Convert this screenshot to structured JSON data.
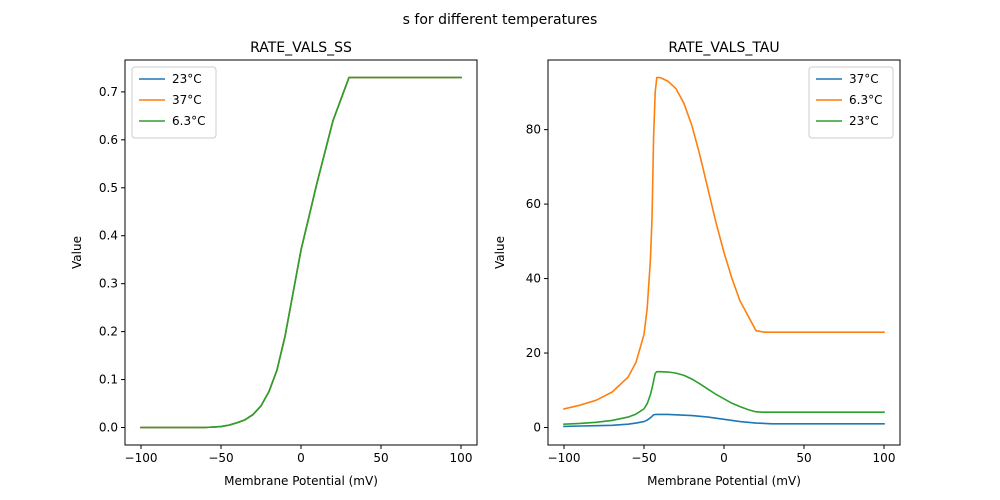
{
  "figure": {
    "suptitle": "s for different temperatures"
  },
  "colors": {
    "blue": "#1f77b4",
    "orange": "#ff7f0e",
    "green": "#2ca02c"
  },
  "chart_data": [
    {
      "type": "line",
      "title": "RATE_VALS_SS",
      "xlabel": "Membrane Potential (mV)",
      "ylabel": "Value",
      "xlim": [
        -100,
        100
      ],
      "ylim": [
        0,
        0.73
      ],
      "xticks": [
        -100,
        -50,
        0,
        50,
        100
      ],
      "xtick_labels": [
        "−100",
        "−50",
        "0",
        "50",
        "100"
      ],
      "yticks": [
        0,
        0.1,
        0.2,
        0.3,
        0.4,
        0.5,
        0.6,
        0.7
      ],
      "ytick_labels": [
        "0.0",
        "0.1",
        "0.2",
        "0.3",
        "0.4",
        "0.5",
        "0.6",
        "0.7"
      ],
      "legend_position": "top-left",
      "x": [
        -100,
        -60,
        -50,
        -45,
        -40,
        -35,
        -30,
        -25,
        -20,
        -15,
        -10,
        -5,
        0,
        5,
        10,
        15,
        20,
        25,
        30,
        40,
        60,
        80,
        100
      ],
      "series": [
        {
          "name": "23°C",
          "color": "#1f77b4",
          "values": [
            0.0,
            0.0,
            0.002,
            0.005,
            0.01,
            0.016,
            0.027,
            0.045,
            0.075,
            0.12,
            0.19,
            0.28,
            0.37,
            0.44,
            0.51,
            0.575,
            0.64,
            0.685,
            0.73,
            0.73,
            0.73,
            0.73,
            0.73
          ]
        },
        {
          "name": "37°C",
          "color": "#ff7f0e",
          "values": [
            0.0,
            0.0,
            0.002,
            0.005,
            0.01,
            0.016,
            0.027,
            0.045,
            0.075,
            0.12,
            0.19,
            0.28,
            0.37,
            0.44,
            0.51,
            0.575,
            0.64,
            0.685,
            0.73,
            0.73,
            0.73,
            0.73,
            0.73
          ]
        },
        {
          "name": "6.3°C",
          "color": "#2ca02c",
          "values": [
            0.0,
            0.0,
            0.002,
            0.005,
            0.01,
            0.016,
            0.027,
            0.045,
            0.075,
            0.12,
            0.19,
            0.28,
            0.37,
            0.44,
            0.51,
            0.575,
            0.64,
            0.685,
            0.73,
            0.73,
            0.73,
            0.73,
            0.73
          ]
        }
      ]
    },
    {
      "type": "line",
      "title": "RATE_VALS_TAU",
      "xlabel": "Membrane Potential (mV)",
      "ylabel": "Value",
      "xlim": [
        -100,
        100
      ],
      "ylim": [
        0,
        94
      ],
      "xticks": [
        -100,
        -50,
        0,
        50,
        100
      ],
      "xtick_labels": [
        "−100",
        "−50",
        "0",
        "50",
        "100"
      ],
      "yticks": [
        0,
        20,
        40,
        60,
        80
      ],
      "ytick_labels": [
        "0",
        "20",
        "40",
        "60",
        "80"
      ],
      "legend_position": "top-right",
      "x": [
        -100,
        -90,
        -80,
        -70,
        -60,
        -55,
        -50,
        -48,
        -46,
        -45,
        -44,
        -43,
        -42,
        -40,
        -35,
        -30,
        -25,
        -20,
        -15,
        -10,
        -5,
        0,
        5,
        10,
        15,
        20,
        25,
        30,
        40,
        60,
        80,
        100
      ],
      "series": [
        {
          "name": "37°C",
          "color": "#1f77b4",
          "values": [
            0.3,
            0.4,
            0.5,
            0.6,
            0.9,
            1.2,
            1.6,
            2.0,
            2.6,
            3.0,
            3.4,
            3.5,
            3.5,
            3.5,
            3.5,
            3.4,
            3.3,
            3.2,
            3.0,
            2.8,
            2.5,
            2.2,
            1.9,
            1.6,
            1.4,
            1.2,
            1.1,
            1.0,
            1.0,
            1.0,
            1.0,
            1.0
          ]
        },
        {
          "name": "6.3°C",
          "color": "#ff7f0e",
          "values": [
            5.0,
            6.0,
            7.3,
            9.5,
            13.5,
            17.5,
            25.0,
            32.0,
            45.0,
            56.0,
            78.0,
            90.0,
            94.0,
            94.0,
            93.0,
            91.0,
            87.0,
            81.0,
            73.0,
            64.0,
            55.0,
            47.0,
            40.0,
            34.0,
            30.0,
            26.0,
            25.6,
            25.6,
            25.6,
            25.6,
            25.6,
            25.6
          ]
        },
        {
          "name": "23°C",
          "color": "#2ca02c",
          "values": [
            0.9,
            1.1,
            1.4,
            1.9,
            2.8,
            3.6,
            5.0,
            6.4,
            8.8,
            10.5,
            12.5,
            14.5,
            15.0,
            15.0,
            14.9,
            14.6,
            14.0,
            13.0,
            11.7,
            10.3,
            8.9,
            7.7,
            6.5,
            5.6,
            4.8,
            4.2,
            4.1,
            4.1,
            4.1,
            4.1,
            4.1,
            4.1
          ]
        }
      ]
    }
  ]
}
